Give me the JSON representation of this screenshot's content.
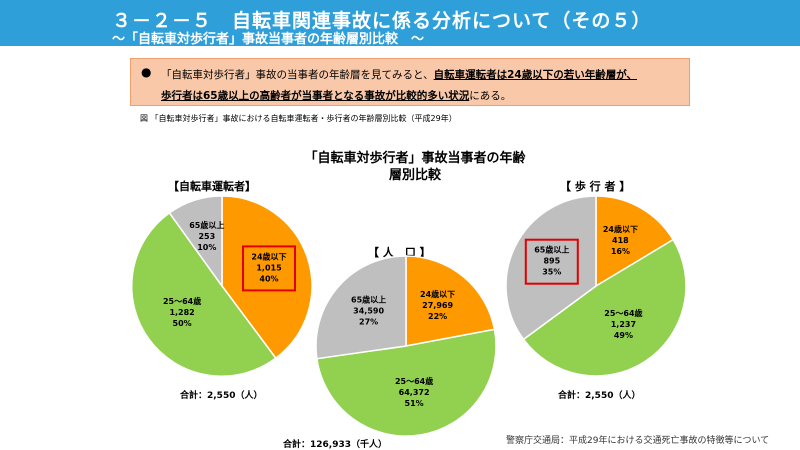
{
  "header": {
    "title": "３－２－５　自転車関連事故に係る分析について（その５）",
    "subtitle": "～「自転車対歩行者」事故当事者の年齢層別比較　～"
  },
  "summary": {
    "bullet": "●",
    "line1_plain": "「自転車対歩行者」事故の当事者の年齢層を見てみると、",
    "line1_emph": "自転車運転者は24歳以下の若い年齢層が、",
    "line2_emph": "歩行者は65歳以上の高齢者が当事者となる事故が比較的多い状況",
    "line2_plain": "にある。"
  },
  "figure_caption": "図 「自転車対歩行者」事故における自転車運転者・歩行者の年齢層別比較（平成29年）",
  "source": "警察庁交通局：平成29年における交通死亡事故の特徴等について",
  "colors": {
    "young": "#FF9900",
    "middle": "#92D050",
    "senior": "#BFBFBF",
    "highlight": "#E00000"
  },
  "chart_data": {
    "type": "pie",
    "title": "「自転車対歩行者」事故当事者の年齢層別比較",
    "charts": [
      {
        "label": "【自転車運転者】",
        "total": "合計：2,550（人）",
        "highlight": "24歳以下",
        "slices": [
          {
            "name": "24歳以下",
            "count": "1,015",
            "pct": "40%",
            "value": 1015
          },
          {
            "name": "25～64歳",
            "count": "1,282",
            "pct": "50%",
            "value": 1282
          },
          {
            "name": "65歳以上",
            "count": "253",
            "pct": "10%",
            "value": 253
          }
        ]
      },
      {
        "label": "【 人　口 】",
        "total": "合計：126,933（千人）",
        "highlight": "",
        "slices": [
          {
            "name": "24歳以下",
            "count": "27,969",
            "pct": "22%",
            "value": 27969
          },
          {
            "name": "25～64歳",
            "count": "64,372",
            "pct": "51%",
            "value": 64372
          },
          {
            "name": "65歳以上",
            "count": "34,590",
            "pct": "27%",
            "value": 34590
          }
        ]
      },
      {
        "label": "【 歩 行 者 】",
        "total": "合計：2,550（人）",
        "highlight": "65歳以上",
        "slices": [
          {
            "name": "24歳以下",
            "count": "418",
            "pct": "16%",
            "value": 418
          },
          {
            "name": "25～64歳",
            "count": "1,237",
            "pct": "49%",
            "value": 1237
          },
          {
            "name": "65歳以上",
            "count": "895",
            "pct": "35%",
            "value": 895
          }
        ]
      }
    ]
  }
}
